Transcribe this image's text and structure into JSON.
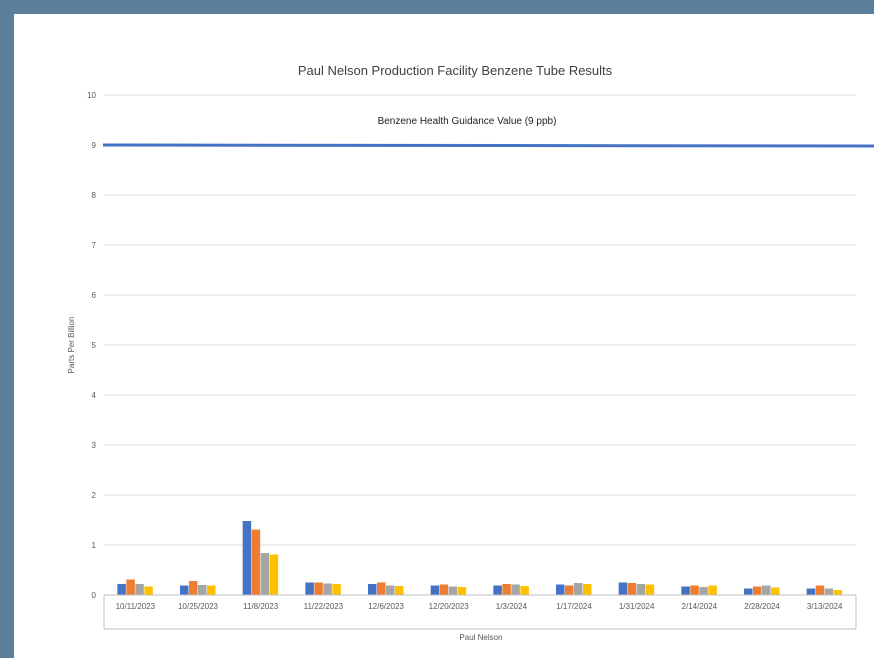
{
  "chart_data": {
    "type": "bar",
    "title": "Paul Nelson Production Facility Benzene Tube Results",
    "annotation": "Benzene Health Guidance Value (9 ppb)",
    "reference_line": {
      "value": 9,
      "color": "#4472c4"
    },
    "xlabel": "Paul Nelson",
    "ylabel": "Parts Per Billion",
    "ylim": [
      0,
      10
    ],
    "yticks": [
      "0",
      "1",
      "2",
      "3",
      "4",
      "5",
      "6",
      "7",
      "8",
      "9",
      "10"
    ],
    "grid": true,
    "legend": "none",
    "categories": [
      "10/11/2023",
      "10/25/2023",
      "11/8/2023",
      "11/22/2023",
      "12/6/2023",
      "12/20/2023",
      "1/3/2024",
      "1/17/2024",
      "1/31/2024",
      "2/14/2024",
      "2/28/2024",
      "3/13/2024"
    ],
    "series": [
      {
        "color": "#4472c4",
        "values": [
          0.22,
          0.19,
          1.48,
          0.25,
          0.22,
          0.19,
          0.19,
          0.21,
          0.25,
          0.17,
          0.13,
          0.13
        ]
      },
      {
        "color": "#ed7d31",
        "values": [
          0.31,
          0.28,
          1.31,
          0.25,
          0.25,
          0.21,
          0.22,
          0.19,
          0.24,
          0.19,
          0.17,
          0.19
        ]
      },
      {
        "color": "#a5a5a5",
        "values": [
          0.22,
          0.2,
          0.84,
          0.23,
          0.19,
          0.17,
          0.21,
          0.24,
          0.22,
          0.16,
          0.19,
          0.13
        ]
      },
      {
        "color": "#ffc000",
        "values": [
          0.17,
          0.19,
          0.81,
          0.22,
          0.18,
          0.16,
          0.18,
          0.22,
          0.21,
          0.19,
          0.15,
          0.1
        ]
      }
    ]
  }
}
